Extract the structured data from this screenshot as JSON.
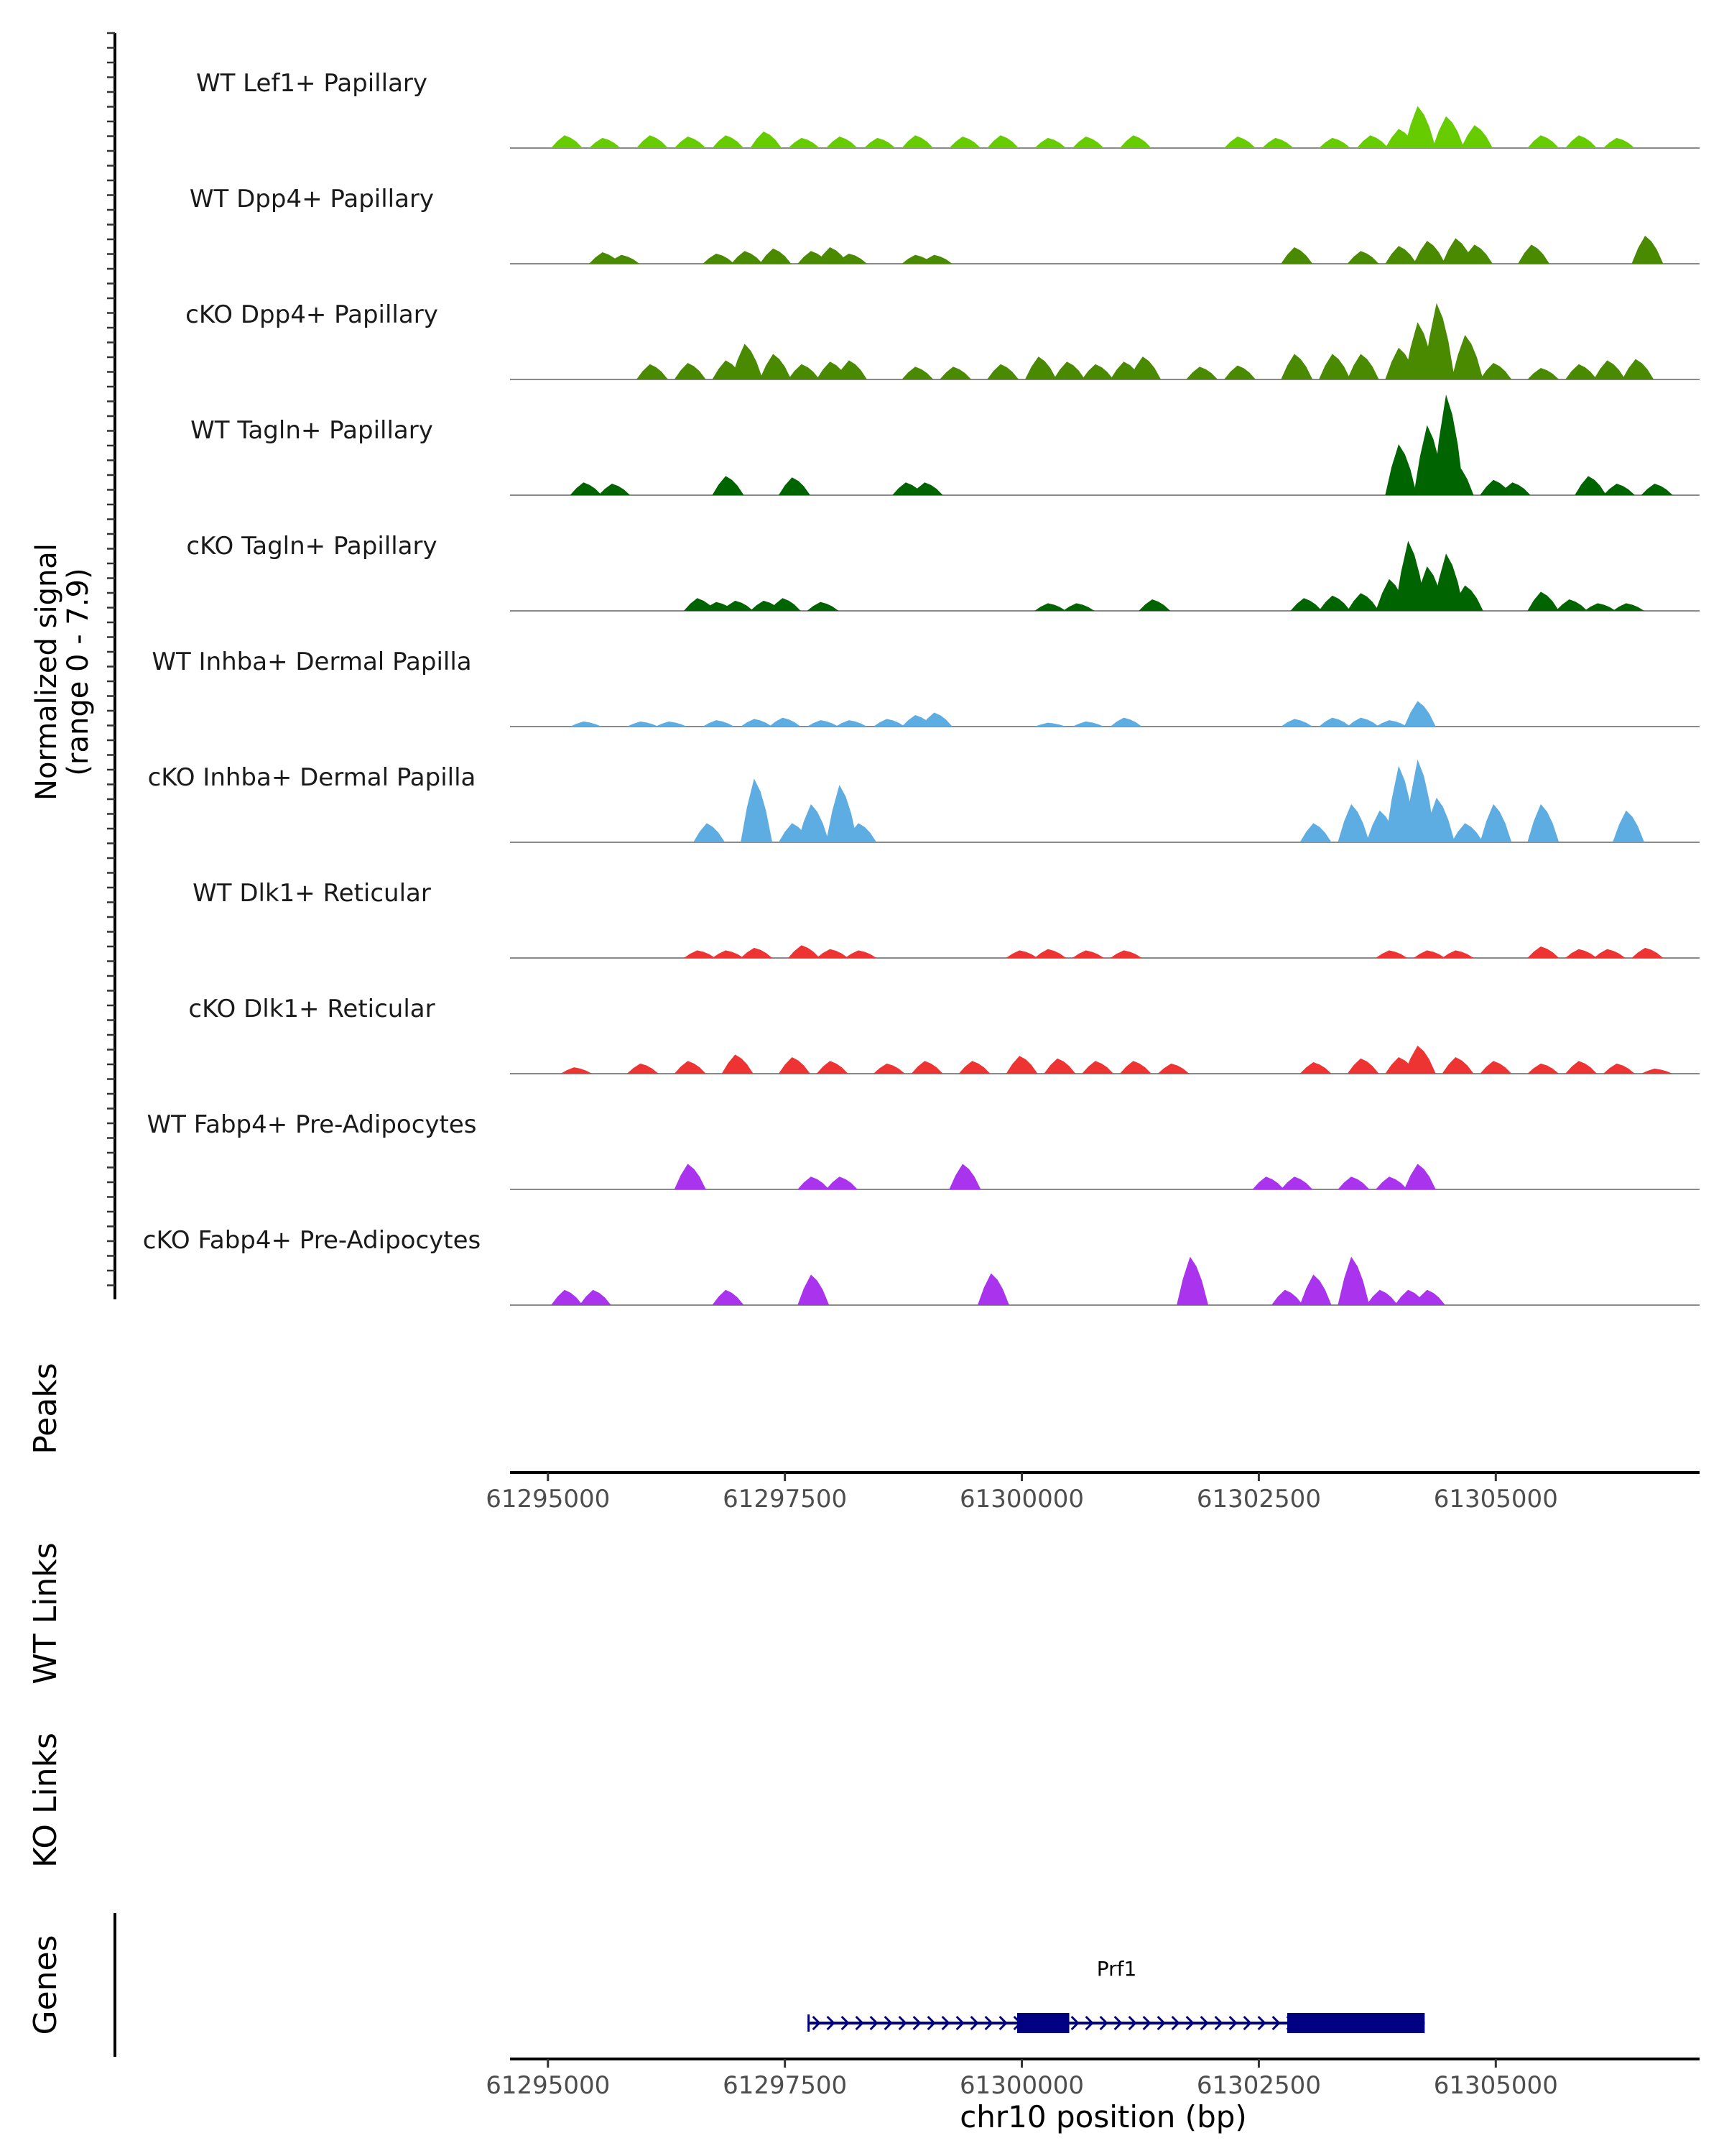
{
  "chart_data": {
    "type": "area",
    "title": "",
    "chromosome": "chr10",
    "xlabel": "chr10 position (bp)",
    "xlim": [
      61294600,
      61307150
    ],
    "xticks": [
      61295000,
      61297500,
      61300000,
      61302500,
      61305000
    ],
    "xtick_labels": [
      "61295000",
      "61297500",
      "61300000",
      "61302500",
      "61305000"
    ],
    "coverage": {
      "ylabel_line1": "Normalized signal",
      "ylabel_line2": "(range 0 - 7.9)",
      "ylim": [
        0,
        7.9
      ],
      "tracks": [
        {
          "name": "WT Lef1+ Papillary",
          "color": "#66CC00",
          "peaks": [
            [
              61295200,
              1.0
            ],
            [
              61295600,
              0.8
            ],
            [
              61296100,
              1.0
            ],
            [
              61296500,
              0.9
            ],
            [
              61296900,
              1.0
            ],
            [
              61297300,
              1.3
            ],
            [
              61297700,
              0.8
            ],
            [
              61298100,
              0.9
            ],
            [
              61298500,
              0.8
            ],
            [
              61298900,
              1.0
            ],
            [
              61299400,
              0.9
            ],
            [
              61299800,
              1.0
            ],
            [
              61300300,
              0.8
            ],
            [
              61300700,
              0.9
            ],
            [
              61301200,
              1.0
            ],
            [
              61302300,
              0.9
            ],
            [
              61302700,
              0.8
            ],
            [
              61303300,
              0.8
            ],
            [
              61303700,
              1.0
            ],
            [
              61304000,
              1.5
            ],
            [
              61304200,
              3.3
            ],
            [
              61304500,
              2.5
            ],
            [
              61304800,
              1.8
            ],
            [
              61305500,
              1.0
            ],
            [
              61305900,
              1.0
            ],
            [
              61306300,
              0.8
            ]
          ]
        },
        {
          "name": "WT Dpp4+ Papillary",
          "color": "#4A8A00",
          "peaks": [
            [
              61295600,
              0.9
            ],
            [
              61295800,
              0.7
            ],
            [
              61296800,
              0.8
            ],
            [
              61297100,
              1.0
            ],
            [
              61297400,
              1.2
            ],
            [
              61297800,
              1.0
            ],
            [
              61298000,
              1.3
            ],
            [
              61298200,
              0.8
            ],
            [
              61298900,
              0.7
            ],
            [
              61299100,
              0.7
            ],
            [
              61302900,
              1.3
            ],
            [
              61303600,
              1.0
            ],
            [
              61304000,
              1.4
            ],
            [
              61304300,
              1.8
            ],
            [
              61304600,
              2.0
            ],
            [
              61304800,
              1.5
            ],
            [
              61305400,
              1.5
            ],
            [
              61306600,
              2.2
            ]
          ]
        },
        {
          "name": "cKO Dpp4+ Papillary",
          "color": "#4A8A00",
          "peaks": [
            [
              61296100,
              1.2
            ],
            [
              61296500,
              1.3
            ],
            [
              61296900,
              1.5
            ],
            [
              61297100,
              2.8
            ],
            [
              61297400,
              2.0
            ],
            [
              61297700,
              1.2
            ],
            [
              61298000,
              1.4
            ],
            [
              61298200,
              1.5
            ],
            [
              61298900,
              1.0
            ],
            [
              61299300,
              1.0
            ],
            [
              61299800,
              1.2
            ],
            [
              61300200,
              1.8
            ],
            [
              61300500,
              1.4
            ],
            [
              61300800,
              1.2
            ],
            [
              61301100,
              1.4
            ],
            [
              61301300,
              1.8
            ],
            [
              61301900,
              1.0
            ],
            [
              61302300,
              1.1
            ],
            [
              61302900,
              2.0
            ],
            [
              61303300,
              2.0
            ],
            [
              61303600,
              2.0
            ],
            [
              61304000,
              2.5
            ],
            [
              61304200,
              4.5
            ],
            [
              61304400,
              6.0
            ],
            [
              61304700,
              3.5
            ],
            [
              61305000,
              1.3
            ],
            [
              61305500,
              0.9
            ],
            [
              61305900,
              1.2
            ],
            [
              61306200,
              1.5
            ],
            [
              61306500,
              1.6
            ]
          ]
        },
        {
          "name": "WT Tagln+ Papillary",
          "color": "#006400",
          "peaks": [
            [
              61295400,
              1.0
            ],
            [
              61295700,
              0.9
            ],
            [
              61296900,
              1.5
            ],
            [
              61297600,
              1.4
            ],
            [
              61298800,
              1.0
            ],
            [
              61299000,
              1.0
            ],
            [
              61304000,
              4.0
            ],
            [
              61304300,
              5.5
            ],
            [
              61304500,
              7.9
            ],
            [
              61304600,
              2.5
            ],
            [
              61305000,
              1.2
            ],
            [
              61305200,
              1.0
            ],
            [
              61306000,
              1.5
            ],
            [
              61306300,
              0.9
            ],
            [
              61306700,
              0.9
            ]
          ]
        },
        {
          "name": "cKO Tagln+ Papillary",
          "color": "#006400",
          "peaks": [
            [
              61296600,
              1.0
            ],
            [
              61296800,
              0.7
            ],
            [
              61297000,
              0.8
            ],
            [
              61297300,
              0.8
            ],
            [
              61297500,
              1.0
            ],
            [
              61297900,
              0.7
            ],
            [
              61300300,
              0.6
            ],
            [
              61300600,
              0.6
            ],
            [
              61301400,
              0.9
            ],
            [
              61303000,
              1.0
            ],
            [
              61303300,
              1.2
            ],
            [
              61303600,
              1.4
            ],
            [
              61303900,
              2.5
            ],
            [
              61304100,
              5.5
            ],
            [
              61304300,
              3.5
            ],
            [
              61304500,
              4.5
            ],
            [
              61304700,
              2.0
            ],
            [
              61305500,
              1.5
            ],
            [
              61305800,
              0.9
            ],
            [
              61306100,
              0.6
            ],
            [
              61306400,
              0.6
            ]
          ]
        },
        {
          "name": "WT Inhba+ Dermal Papilla",
          "color": "#5DADE2",
          "peaks": [
            [
              61295400,
              0.4
            ],
            [
              61296000,
              0.4
            ],
            [
              61296300,
              0.4
            ],
            [
              61296800,
              0.5
            ],
            [
              61297200,
              0.6
            ],
            [
              61297500,
              0.7
            ],
            [
              61297900,
              0.5
            ],
            [
              61298200,
              0.5
            ],
            [
              61298600,
              0.6
            ],
            [
              61298900,
              0.9
            ],
            [
              61299100,
              1.1
            ],
            [
              61300300,
              0.3
            ],
            [
              61300700,
              0.4
            ],
            [
              61301100,
              0.7
            ],
            [
              61302900,
              0.6
            ],
            [
              61303300,
              0.7
            ],
            [
              61303600,
              0.7
            ],
            [
              61303900,
              0.5
            ],
            [
              61304200,
              2.0
            ]
          ]
        },
        {
          "name": "cKO Inhba+ Dermal Papilla",
          "color": "#5DADE2",
          "peaks": [
            [
              61296700,
              1.5
            ],
            [
              61297200,
              5.0
            ],
            [
              61297600,
              1.5
            ],
            [
              61297800,
              3.0
            ],
            [
              61298100,
              4.5
            ],
            [
              61298300,
              1.5
            ],
            [
              61303100,
              1.5
            ],
            [
              61303500,
              3.0
            ],
            [
              61303800,
              2.5
            ],
            [
              61304000,
              6.0
            ],
            [
              61304200,
              6.5
            ],
            [
              61304400,
              3.5
            ],
            [
              61304700,
              1.5
            ],
            [
              61305000,
              3.0
            ],
            [
              61305500,
              3.0
            ],
            [
              61306400,
              2.5
            ]
          ]
        },
        {
          "name": "WT Dlk1+ Reticular",
          "color": "#EE3333",
          "peaks": [
            [
              61296600,
              0.6
            ],
            [
              61296900,
              0.6
            ],
            [
              61297200,
              0.8
            ],
            [
              61297700,
              1.0
            ],
            [
              61298000,
              0.7
            ],
            [
              61298300,
              0.6
            ],
            [
              61300000,
              0.6
            ],
            [
              61300300,
              0.7
            ],
            [
              61300700,
              0.6
            ],
            [
              61301100,
              0.6
            ],
            [
              61303900,
              0.6
            ],
            [
              61304300,
              0.6
            ],
            [
              61304600,
              0.6
            ],
            [
              61305500,
              0.9
            ],
            [
              61305900,
              0.7
            ],
            [
              61306200,
              0.7
            ],
            [
              61306600,
              0.8
            ]
          ]
        },
        {
          "name": "cKO Dlk1+ Reticular",
          "color": "#EE3333",
          "peaks": [
            [
              61295300,
              0.5
            ],
            [
              61296000,
              0.8
            ],
            [
              61296500,
              1.0
            ],
            [
              61297000,
              1.5
            ],
            [
              61297600,
              1.3
            ],
            [
              61298000,
              1.0
            ],
            [
              61298600,
              0.8
            ],
            [
              61299000,
              1.0
            ],
            [
              61299500,
              1.0
            ],
            [
              61300000,
              1.4
            ],
            [
              61300400,
              1.2
            ],
            [
              61300800,
              1.0
            ],
            [
              61301200,
              1.0
            ],
            [
              61301600,
              0.8
            ],
            [
              61303100,
              0.9
            ],
            [
              61303600,
              1.2
            ],
            [
              61304000,
              1.3
            ],
            [
              61304200,
              2.2
            ],
            [
              61304600,
              1.3
            ],
            [
              61305000,
              1.0
            ],
            [
              61305500,
              0.8
            ],
            [
              61305900,
              1.0
            ],
            [
              61306300,
              0.8
            ],
            [
              61306700,
              0.4
            ]
          ]
        },
        {
          "name": "WT Fabp4+ Pre-Adipocytes",
          "color": "#AA33EE",
          "peaks": [
            [
              61296500,
              2.0
            ],
            [
              61297800,
              1.0
            ],
            [
              61298100,
              1.0
            ],
            [
              61299400,
              2.0
            ],
            [
              61302600,
              1.0
            ],
            [
              61302900,
              1.0
            ],
            [
              61303500,
              1.0
            ],
            [
              61303900,
              1.0
            ],
            [
              61304200,
              2.0
            ]
          ]
        },
        {
          "name": "cKO Fabp4+ Pre-Adipocytes",
          "color": "#AA33EE",
          "peaks": [
            [
              61295200,
              1.2
            ],
            [
              61295500,
              1.2
            ],
            [
              61296900,
              1.2
            ],
            [
              61297800,
              2.4
            ],
            [
              61299700,
              2.5
            ],
            [
              61301800,
              3.8
            ],
            [
              61302800,
              1.2
            ],
            [
              61303100,
              2.4
            ],
            [
              61303500,
              3.8
            ],
            [
              61303800,
              1.2
            ],
            [
              61304100,
              1.2
            ],
            [
              61304300,
              1.2
            ]
          ]
        }
      ]
    },
    "tracks_empty": {
      "peaks_label": "Peaks",
      "wt_links_label": "WT Links",
      "ko_links_label": "KO Links"
    },
    "genes": {
      "label": "Genes",
      "strand": "+",
      "items": [
        {
          "name": "Prf1",
          "start": 61297750,
          "end": 61304250,
          "exons": [
            [
              61299950,
              61300500
            ],
            [
              61302800,
              61304250
            ]
          ]
        }
      ]
    }
  }
}
